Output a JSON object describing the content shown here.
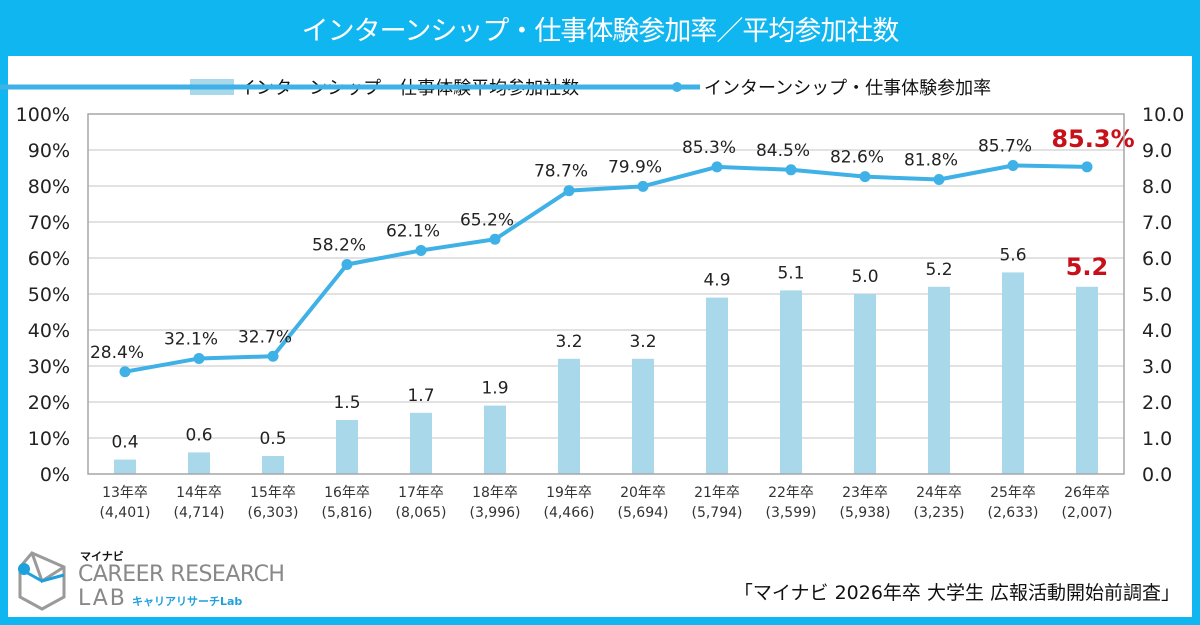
{
  "title": "インターンシップ・仕事体験参加率／平均参加社数",
  "source": "「マイナビ 2026年卒 大学生 広報活動開始前調査」",
  "logo": {
    "brand": "マイナビ",
    "line1": "CAREER RESEARCH",
    "line2": "LAB",
    "sub": "キャリアリサーチLab"
  },
  "colors": {
    "header": "#10b6f0",
    "bar": "#a9d8eb",
    "line": "#3fb1e6",
    "highlight": "#c8101a",
    "grid": "#d9d9d9"
  },
  "chart_data": {
    "type": "bar+line",
    "title": "インターンシップ・仕事体験参加率／平均参加社数",
    "legend_position": "top-center",
    "grid": true,
    "categories": [
      "13年卒",
      "14年卒",
      "15年卒",
      "16年卒",
      "17年卒",
      "18年卒",
      "19年卒",
      "20年卒",
      "21年卒",
      "22年卒",
      "23年卒",
      "24年卒",
      "25年卒",
      "26年卒"
    ],
    "sample_sizes": [
      "(4,401)",
      "(4,714)",
      "(6,303)",
      "(5,816)",
      "(8,065)",
      "(3,996)",
      "(4,466)",
      "(5,694)",
      "(5,794)",
      "(3,599)",
      "(5,938)",
      "(3,235)",
      "(2,633)",
      "(2,007)"
    ],
    "series": [
      {
        "name": "インターンシップ・仕事体験平均参加社数",
        "type": "bar",
        "axis": "right",
        "values": [
          0.4,
          0.6,
          0.5,
          1.5,
          1.7,
          1.9,
          3.2,
          3.2,
          4.9,
          5.1,
          5.0,
          5.2,
          5.6,
          5.2
        ],
        "labels": [
          "0.4",
          "0.6",
          "0.5",
          "1.5",
          "1.7",
          "1.9",
          "3.2",
          "3.2",
          "4.9",
          "5.1",
          "5.0",
          "5.2",
          "5.6",
          "5.2"
        ]
      },
      {
        "name": "インターンシップ・仕事体験参加率",
        "type": "line",
        "axis": "left",
        "values": [
          28.4,
          32.1,
          32.7,
          58.2,
          62.1,
          65.2,
          78.7,
          79.9,
          85.3,
          84.5,
          82.6,
          81.8,
          85.7,
          85.3
        ],
        "labels": [
          "28.4%",
          "32.1%",
          "32.7%",
          "58.2%",
          "62.1%",
          "65.2%",
          "78.7%",
          "79.9%",
          "85.3%",
          "84.5%",
          "82.6%",
          "81.8%",
          "85.7%",
          "85.3%"
        ]
      }
    ],
    "highlight_index": 13,
    "y_left": {
      "min": 0,
      "max": 100,
      "step": 10,
      "ticks": [
        "0%",
        "10%",
        "20%",
        "30%",
        "40%",
        "50%",
        "60%",
        "70%",
        "80%",
        "90%",
        "100%"
      ]
    },
    "y_right": {
      "min": 0,
      "max": 10,
      "step": 1,
      "ticks": [
        "0.0",
        "1.0",
        "2.0",
        "3.0",
        "4.0",
        "5.0",
        "6.0",
        "7.0",
        "8.0",
        "9.0",
        "10.0"
      ]
    }
  }
}
